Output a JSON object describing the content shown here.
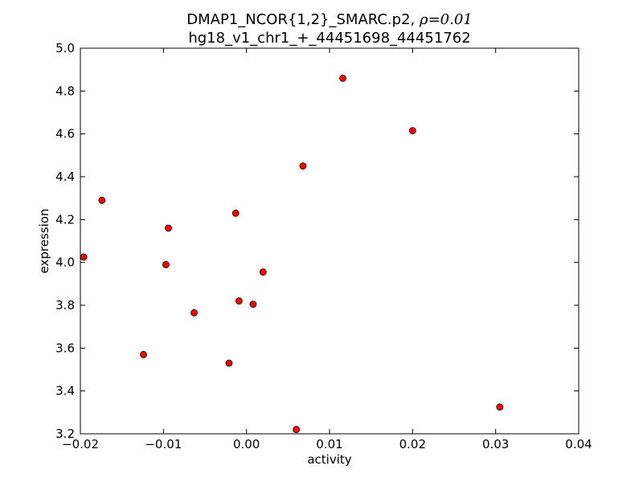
{
  "chart_data": {
    "type": "scatter",
    "title": {
      "line1": "DMAP1_NCOR{1,2}_SMARC.p2, ",
      "rho_symbol": "ρ",
      "rho_eq": "=0.01",
      "line2": "hg18_v1_chr1_+_44451698_44451762"
    },
    "xlabel": "activity",
    "ylabel": "expression",
    "xlim": [
      -0.02,
      0.04
    ],
    "ylim": [
      3.2,
      5.0
    ],
    "xticks": [
      -0.02,
      -0.01,
      0.0,
      0.01,
      0.02,
      0.03,
      0.04
    ],
    "xtick_labels": [
      "−0.02",
      "−0.01",
      "0.00",
      "0.01",
      "0.02",
      "0.03",
      "0.04"
    ],
    "yticks": [
      3.2,
      3.4,
      3.6,
      3.8,
      4.0,
      4.2,
      4.4,
      4.6,
      4.8,
      5.0
    ],
    "ytick_labels": [
      "3.2",
      "3.4",
      "3.6",
      "3.8",
      "4.0",
      "4.2",
      "4.4",
      "4.6",
      "4.8",
      "5.0"
    ],
    "grid": false,
    "marker_color": "#ff0000",
    "marker_edge_color": "#000000",
    "points": [
      {
        "x": -0.0196,
        "y": 4.025
      },
      {
        "x": -0.0174,
        "y": 4.29
      },
      {
        "x": -0.0124,
        "y": 3.57
      },
      {
        "x": -0.0097,
        "y": 3.99
      },
      {
        "x": -0.0094,
        "y": 4.16
      },
      {
        "x": -0.0063,
        "y": 3.765
      },
      {
        "x": -0.0021,
        "y": 3.53
      },
      {
        "x": -0.0013,
        "y": 4.23
      },
      {
        "x": -0.0009,
        "y": 3.82
      },
      {
        "x": 0.0008,
        "y": 3.805
      },
      {
        "x": 0.002,
        "y": 3.955
      },
      {
        "x": 0.006,
        "y": 3.22
      },
      {
        "x": 0.0068,
        "y": 4.45
      },
      {
        "x": 0.0116,
        "y": 4.86
      },
      {
        "x": 0.02,
        "y": 4.615
      },
      {
        "x": 0.0305,
        "y": 3.325
      }
    ]
  }
}
